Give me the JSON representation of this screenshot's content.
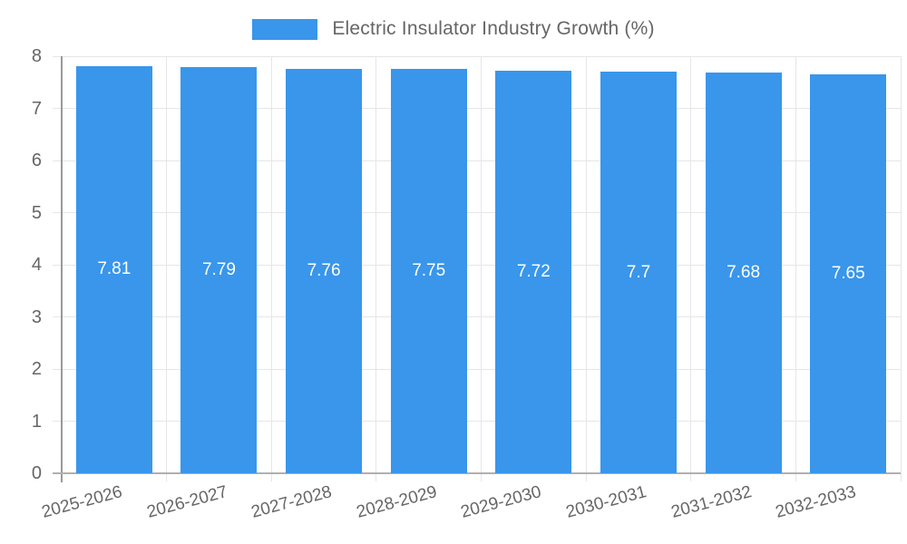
{
  "chart_data": {
    "type": "bar",
    "title": "Electric Insulator Industry Growth (%)",
    "categories": [
      "2025-2026",
      "2026-2027",
      "2027-2028",
      "2028-2029",
      "2029-2030",
      "2030-2031",
      "2031-2032",
      "2032-2033"
    ],
    "values": [
      7.81,
      7.79,
      7.76,
      7.75,
      7.72,
      7.7,
      7.68,
      7.65
    ],
    "data_labels": [
      "7.81",
      "7.79",
      "7.76",
      "7.75",
      "7.72",
      "7.7",
      "7.68",
      "7.65"
    ],
    "xlabel": "",
    "ylabel": "",
    "ylim": [
      0,
      8
    ],
    "y_ticks": [
      0,
      1,
      2,
      3,
      4,
      5,
      6,
      7,
      8
    ],
    "grid": true,
    "legend_position": "top-center",
    "bar_color": "#3996EB",
    "bar_label_color": "#ffffff",
    "axis_text_color": "#666666",
    "grid_color": "#e6e6e6",
    "axis_line_color": "#999999",
    "baseline_color": "#b0b0b0",
    "background": "#ffffff"
  }
}
